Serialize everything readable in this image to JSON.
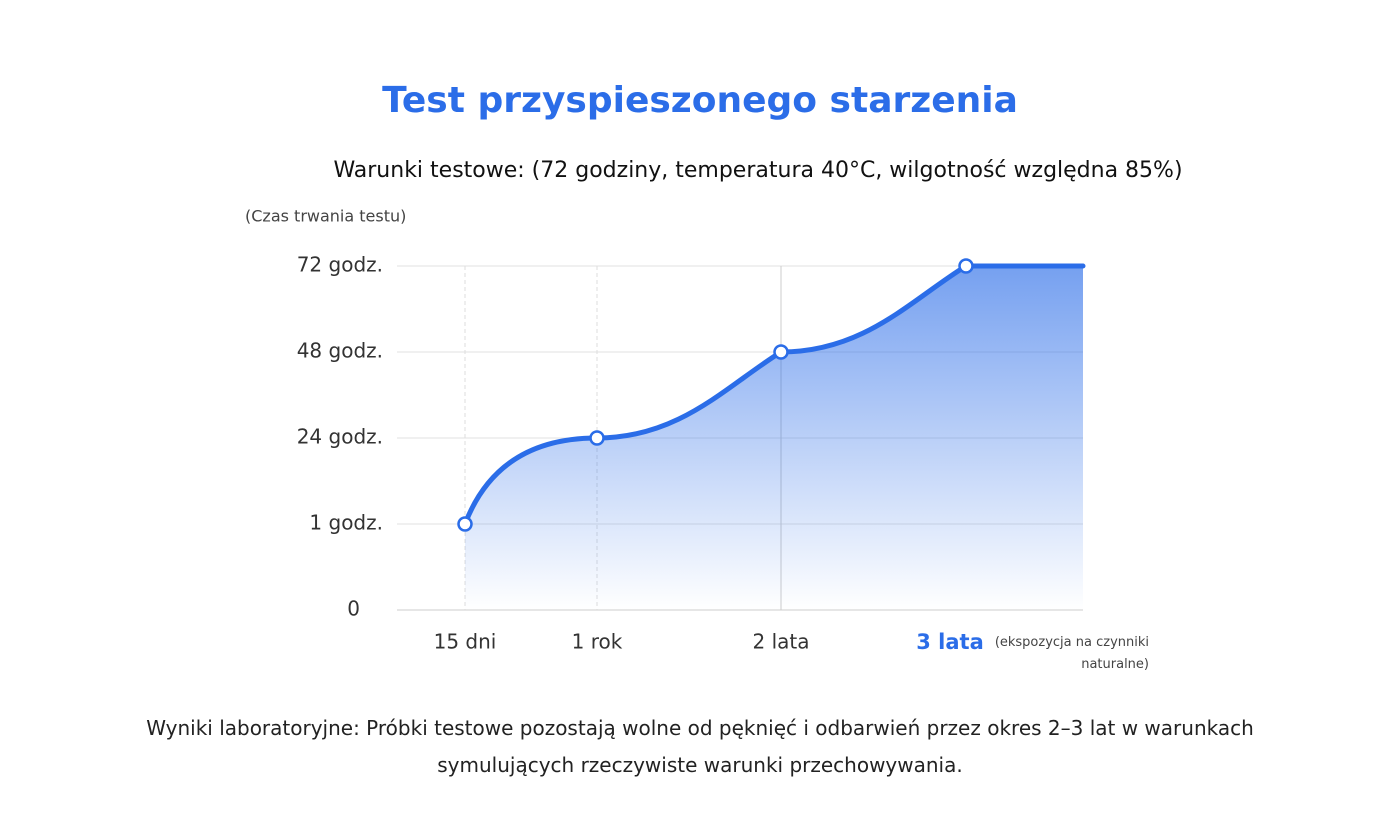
{
  "chart_data": {
    "type": "line",
    "title": "Test przyspieszonego starzenia",
    "subtitle": "Warunki testowe: (72 godziny, temperatura 40°C, wilgotność względna 85%)",
    "y_label": "(Czas trwania testu)",
    "categories": [
      "15 dni",
      "1 rok",
      "2 lata",
      "3 lata"
    ],
    "values": [
      1,
      24,
      48,
      72
    ],
    "color": "#2b6de8",
    "highlight_index": 3,
    "annotation": "(ekspozycja na czynniki naturalne)",
    "ylim": [
      0,
      72
    ],
    "yticks": [
      0,
      {
        "value": 1,
        "label": "1 godz."
      },
      {
        "value": 24,
        "label": "24 godz."
      },
      {
        "value": 48,
        "label": "48 godz."
      },
      {
        "value": 72,
        "label": "72 godz."
      }
    ],
    "grid": true,
    "footer": "Wyniki laboratoryjne: Próbki testowe pozostają wolne od pęknięć i odbarwień przez okres 2–3 lat w warunkach symulujących rzeczywiste warunki przechowywania."
  }
}
